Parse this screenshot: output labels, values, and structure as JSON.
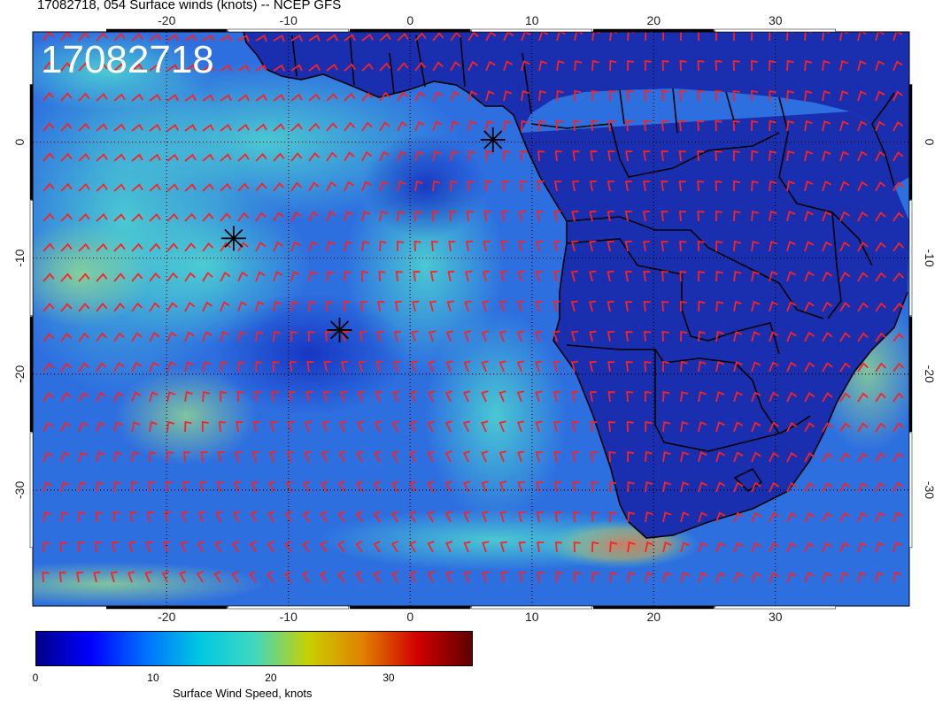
{
  "title": "17082718, 054 Surface winds (knots) -- NCEP GFS",
  "stamp": "17082718",
  "map": {
    "lon_range": [
      -31,
      41
    ],
    "lat_range": [
      -40,
      9.5
    ],
    "lon_ticks": [
      "-20",
      "-10",
      "0",
      "10",
      "20",
      "30"
    ],
    "lat_ticks": [
      "0",
      "-10",
      "-20",
      "-30"
    ],
    "land_color": "#1a2fb0",
    "ocean_base_color": "#2e6fe0",
    "border_color": "#000000",
    "barb_color": "#ff2020",
    "gridline_style": "dotted"
  },
  "markers": [
    {
      "name": "star-marker",
      "lon": 6.8,
      "lat": 0.2
    },
    {
      "name": "star-marker",
      "lon": -14.5,
      "lat": -8.3
    },
    {
      "name": "star-marker",
      "lon": -5.8,
      "lat": -16.2
    }
  ],
  "colorbar": {
    "label": "Surface Wind Speed, knots",
    "min": 0,
    "max": 37,
    "ticks": [
      "0",
      "10",
      "20",
      "30"
    ],
    "tick_values": [
      0,
      10,
      20,
      30
    ],
    "colors": [
      "#00008b",
      "#0000ff",
      "#0070ff",
      "#00c8e0",
      "#40d8c0",
      "#c8d000",
      "#e08000",
      "#d00000",
      "#600000"
    ]
  }
}
